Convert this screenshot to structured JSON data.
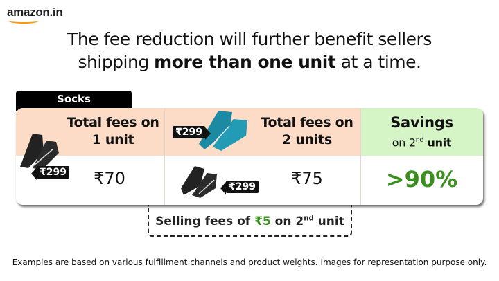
{
  "logo": {
    "text": "amazon.in"
  },
  "headline": {
    "line1": "The fee reduction will further benefit sellers",
    "line2_pre": "shipping ",
    "line2_bold": "more than one unit",
    "line2_post": " at a time."
  },
  "category_tab": "Socks",
  "columns": [
    {
      "header_line1": "Total fees on",
      "header_line2": "1 unit",
      "value": "₹70",
      "price_tags": [
        "₹299"
      ]
    },
    {
      "header_line1": "Total fees on",
      "header_line2": "2 units",
      "value": "₹75",
      "price_tags": [
        "₹299",
        "₹299"
      ]
    },
    {
      "header_line1": "Savings",
      "header_line2_pre": "on 2",
      "header_line2_sup": "nd",
      "header_line2_post": " unit",
      "value": ">90%"
    }
  ],
  "selling_fees": {
    "pre": "Selling fees of ",
    "amount": "₹5",
    "mid": " on 2",
    "sup": "nd",
    "post": " unit"
  },
  "footnote": "Examples are based on various fulfillment channels and product weights. Images for representation purpose only.",
  "colors": {
    "peach": "#fcdcc6",
    "green_bg": "#d6f5c7",
    "green_text": "#3a8f1e",
    "logo_smile": "#ff9900"
  }
}
